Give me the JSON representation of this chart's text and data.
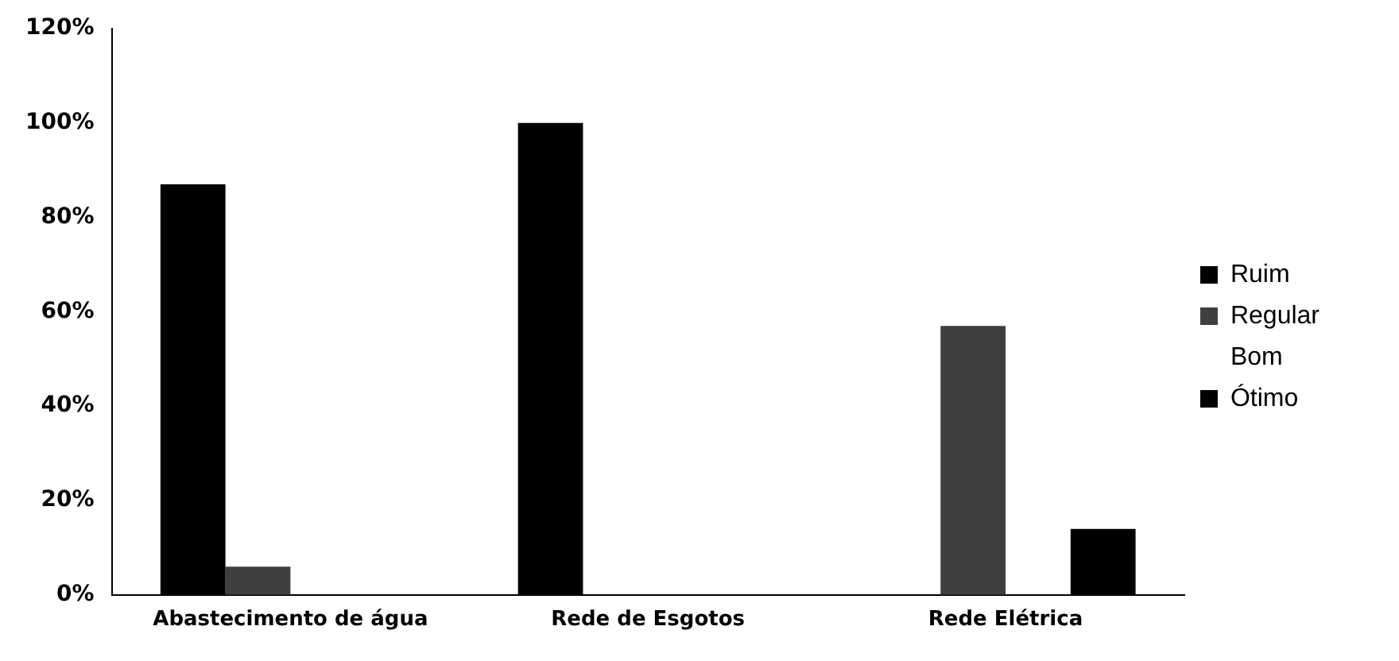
{
  "chart_data": {
    "type": "bar",
    "categories": [
      "Abastecimento de água",
      "Rede de Esgotos",
      "Rede Elétrica"
    ],
    "series": [
      {
        "name": "Ruim",
        "color": "#000000",
        "values": [
          87,
          100,
          0
        ]
      },
      {
        "name": "Regular",
        "color": "#3f3f3f",
        "values": [
          6,
          0,
          57
        ]
      },
      {
        "name": "Bom",
        "values": [
          0,
          0,
          0
        ]
      },
      {
        "name": "Ótimo",
        "color": "#000000",
        "values": [
          0,
          0,
          14
        ]
      }
    ],
    "ylim": [
      0,
      120
    ],
    "yticks": [
      {
        "value": 0,
        "label": "0%"
      },
      {
        "value": 20,
        "label": "20%"
      },
      {
        "value": 40,
        "label": "40%"
      },
      {
        "value": 60,
        "label": "60%"
      },
      {
        "value": 80,
        "label": "80%"
      },
      {
        "value": 100,
        "label": "100%"
      },
      {
        "value": 120,
        "label": "120%"
      }
    ],
    "grid": false,
    "legend": "right"
  }
}
